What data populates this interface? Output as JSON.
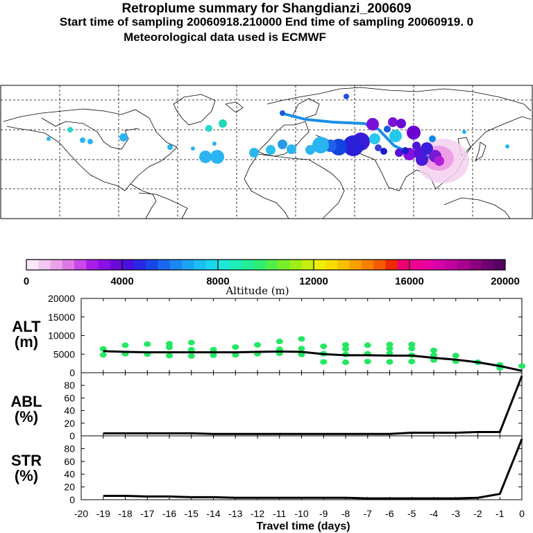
{
  "header": {
    "title": "Retroplume summary for Shangdianzi_200609",
    "sampling": "Start time of sampling 20060918.210000     End time of sampling 20060919.     0",
    "met": "Meteorological data used is ECMWF"
  },
  "colorbar": {
    "label": "Altitude (m)",
    "ticks": [
      "0",
      "4000",
      "8000",
      "12000",
      "16000",
      "20000"
    ]
  },
  "panels": {
    "alt": {
      "label1": "ALT",
      "label2": "(m)"
    },
    "abl": {
      "label1": "ABL",
      "label2": "(%)"
    },
    "str": {
      "label1": "STR",
      "label2": "(%)"
    }
  },
  "xaxis_label": "Travel time (days)",
  "chart_data": [
    {
      "type": "line",
      "id": "ALT",
      "ylabel": "ALT (m)",
      "ylim": [
        0,
        20000
      ],
      "yticks": [
        0,
        5000,
        10000,
        15000,
        20000
      ],
      "xlim": [
        -20,
        0
      ],
      "xticks": [
        -20,
        -19,
        -18,
        -17,
        -16,
        -15,
        -14,
        -13,
        -12,
        -11,
        -10,
        -9,
        -8,
        -7,
        -6,
        -5,
        -4,
        -3,
        -2,
        -1,
        0
      ],
      "x": [
        -19,
        -18,
        -17,
        -16,
        -15,
        -14,
        -13,
        -12,
        -11,
        -10,
        -9,
        -8,
        -7,
        -6,
        -5,
        -4,
        -3,
        -2,
        -1,
        0
      ],
      "values": [
        5800,
        5600,
        5500,
        5500,
        5500,
        5500,
        5500,
        5600,
        5700,
        5600,
        5000,
        4700,
        4700,
        4600,
        4600,
        4000,
        3500,
        2800,
        1800,
        500
      ],
      "cluster_points": [
        {
          "x": -19,
          "y": 4800
        },
        {
          "x": -19,
          "y": 6400
        },
        {
          "x": -18,
          "y": 5100
        },
        {
          "x": -18,
          "y": 7400
        },
        {
          "x": -17,
          "y": 5000
        },
        {
          "x": -17,
          "y": 7700
        },
        {
          "x": -16,
          "y": 4600
        },
        {
          "x": -16,
          "y": 6800
        },
        {
          "x": -16,
          "y": 7800
        },
        {
          "x": -15,
          "y": 4500
        },
        {
          "x": -15,
          "y": 6200
        },
        {
          "x": -15,
          "y": 8100
        },
        {
          "x": -14,
          "y": 4700
        },
        {
          "x": -14,
          "y": 6200
        },
        {
          "x": -13,
          "y": 4800
        },
        {
          "x": -13,
          "y": 6900
        },
        {
          "x": -12,
          "y": 5100
        },
        {
          "x": -12,
          "y": 7500
        },
        {
          "x": -11,
          "y": 5200
        },
        {
          "x": -11,
          "y": 6300
        },
        {
          "x": -11,
          "y": 8400
        },
        {
          "x": -10,
          "y": 4900
        },
        {
          "x": -10,
          "y": 6500
        },
        {
          "x": -10,
          "y": 9100
        },
        {
          "x": -9,
          "y": 2900
        },
        {
          "x": -9,
          "y": 5100
        },
        {
          "x": -9,
          "y": 7100
        },
        {
          "x": -8,
          "y": 2800
        },
        {
          "x": -8,
          "y": 4900
        },
        {
          "x": -8,
          "y": 6400
        },
        {
          "x": -8,
          "y": 7500
        },
        {
          "x": -7,
          "y": 3000
        },
        {
          "x": -7,
          "y": 5100
        },
        {
          "x": -7,
          "y": 7400
        },
        {
          "x": -6,
          "y": 2900
        },
        {
          "x": -6,
          "y": 5200
        },
        {
          "x": -6,
          "y": 6500
        },
        {
          "x": -6,
          "y": 7600
        },
        {
          "x": -5,
          "y": 3000
        },
        {
          "x": -5,
          "y": 4700
        },
        {
          "x": -5,
          "y": 6500
        },
        {
          "x": -5,
          "y": 7600
        },
        {
          "x": -4,
          "y": 3400
        },
        {
          "x": -4,
          "y": 4700
        },
        {
          "x": -4,
          "y": 6000
        },
        {
          "x": -3,
          "y": 3100
        },
        {
          "x": -3,
          "y": 4600
        },
        {
          "x": -2,
          "y": 2800
        },
        {
          "x": -1,
          "y": 1300
        },
        {
          "x": -1,
          "y": 2100
        },
        {
          "x": 0,
          "y": 1800
        }
      ]
    },
    {
      "type": "line",
      "id": "ABL",
      "ylabel": "ABL (%)",
      "ylim": [
        0,
        100
      ],
      "yticks": [
        0,
        20,
        40,
        60,
        80
      ],
      "x": [
        -19,
        -18,
        -17,
        -16,
        -15,
        -14,
        -13,
        -12,
        -11,
        -10,
        -9,
        -8,
        -7,
        -6,
        -5,
        -4,
        -3,
        -2,
        -1,
        0
      ],
      "values": [
        4,
        4,
        4,
        4,
        4,
        3,
        3,
        3,
        3,
        3,
        3,
        3,
        3,
        3,
        5,
        5,
        5,
        6,
        6,
        95
      ]
    },
    {
      "type": "line",
      "id": "STR",
      "ylabel": "STR (%)",
      "ylim": [
        0,
        100
      ],
      "yticks": [
        0,
        20,
        40,
        60,
        80
      ],
      "x": [
        -19,
        -18,
        -17,
        -16,
        -15,
        -14,
        -13,
        -12,
        -11,
        -10,
        -9,
        -8,
        -7,
        -6,
        -5,
        -4,
        -3,
        -2,
        -1,
        0
      ],
      "values": [
        6,
        6,
        5,
        5,
        4,
        4,
        3,
        3,
        3,
        3,
        3,
        3,
        2,
        2,
        2,
        2,
        2,
        3,
        9,
        95
      ]
    }
  ]
}
